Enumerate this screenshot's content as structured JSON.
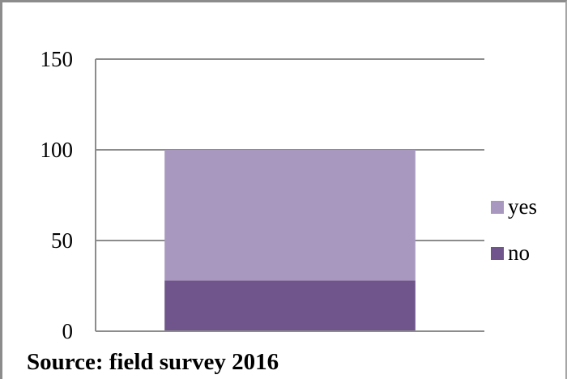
{
  "chart_data": {
    "type": "bar",
    "stacked": true,
    "categories": [
      ""
    ],
    "series": [
      {
        "name": "no",
        "values": [
          28
        ],
        "color": "#70558c"
      },
      {
        "name": "yes",
        "values": [
          72
        ],
        "color": "#a898bf"
      }
    ],
    "ylim": [
      0,
      150
    ],
    "yticks": [
      0,
      50,
      100,
      150
    ],
    "grid": true,
    "legend_position": "right",
    "gridline_color": "#8c8c8c"
  },
  "source_text": "Source: field survey 2016"
}
